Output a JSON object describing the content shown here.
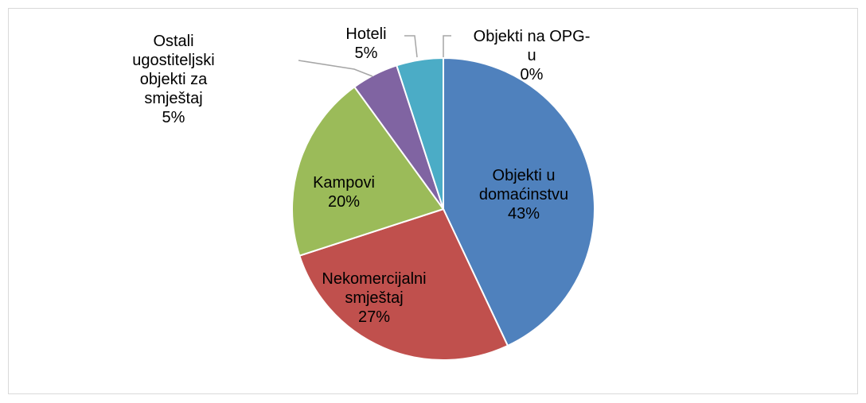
{
  "chart_data": {
    "type": "pie",
    "categories": [
      "Objekti u domaćinstvu",
      "Nekomercijalni smještaj",
      "Kampovi",
      "Ostali ugostiteljski objekti za smještaj",
      "Hoteli",
      "Objekti na OPG-u"
    ],
    "values": [
      43,
      27,
      20,
      5,
      5,
      0
    ],
    "value_labels": [
      "43%",
      "27%",
      "20%",
      "5%",
      "5%",
      "0%"
    ],
    "colors": [
      "#4f81bd",
      "#c0504d",
      "#9bbb59",
      "#8064a2",
      "#4bacc6",
      "#f79646"
    ]
  }
}
